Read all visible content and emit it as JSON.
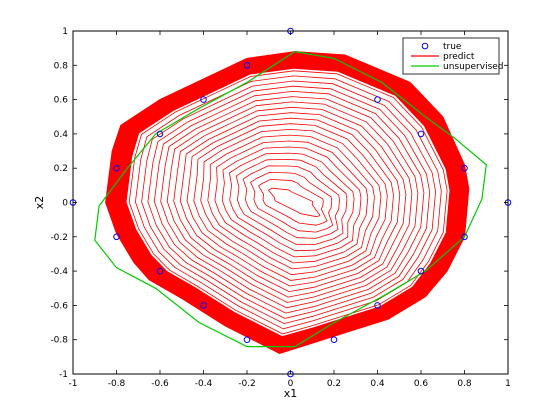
{
  "chart_data": {
    "type": "line",
    "title": "",
    "xlabel": "x1",
    "ylabel": "x2",
    "xlim": [
      -1,
      1
    ],
    "ylim": [
      -1,
      1
    ],
    "x_ticks": [
      -1,
      -0.8,
      -0.6,
      -0.4,
      -0.2,
      0,
      0.2,
      0.4,
      0.6,
      0.8,
      1
    ],
    "y_ticks": [
      -1,
      -0.8,
      -0.6,
      -0.4,
      -0.2,
      0,
      0.2,
      0.4,
      0.6,
      0.8,
      1
    ],
    "x_tick_labels": [
      "-1",
      "-0.8",
      "-0.6",
      "-0.4",
      "-0.2",
      "0",
      "0.2",
      "0.4",
      "0.6",
      "0.8",
      "1"
    ],
    "y_tick_labels": [
      "-1",
      "-0.8",
      "-0.6",
      "-0.4",
      "-0.2",
      "0",
      "0.2",
      "0.4",
      "0.6",
      "0.8",
      "1"
    ],
    "grid": false,
    "legend_position": "top-right",
    "colors": {
      "true": "#0000ff",
      "predict": "#ff0000",
      "unsupervised": "#00cc00"
    },
    "series": [
      {
        "name": "true",
        "style": "circle-markers",
        "x": [
          0,
          0.4,
          0.6,
          0.8,
          1,
          0.8,
          0.6,
          0.4,
          0.2,
          0,
          -0.2,
          -0.4,
          -0.6,
          -0.8,
          -1,
          -0.8,
          -0.6,
          -0.4,
          -0.2
        ],
        "y": [
          1,
          0.6,
          0.4,
          0.2,
          0,
          -0.2,
          -0.4,
          -0.6,
          -0.8,
          -1,
          0.8,
          0.6,
          0.4,
          -0.2,
          0,
          0.2,
          -0.4,
          -0.6,
          -0.8
        ]
      },
      {
        "name": "predict",
        "style": "nested-contours",
        "outer_x": [
          0.02,
          0.25,
          0.55,
          0.7,
          0.8,
          0.82,
          0.8,
          0.72,
          0.62,
          0.45,
          0.25,
          0.1,
          -0.05,
          -0.3,
          -0.5,
          -0.65,
          -0.72,
          -0.8,
          -0.85,
          -0.82,
          -0.78,
          -0.6,
          -0.4,
          -0.2
        ],
        "outer_y": [
          0.88,
          0.86,
          0.7,
          0.5,
          0.22,
          0.08,
          -0.2,
          -0.4,
          -0.55,
          -0.68,
          -0.76,
          -0.82,
          -0.88,
          -0.72,
          -0.56,
          -0.45,
          -0.35,
          -0.18,
          0,
          0.3,
          0.45,
          0.6,
          0.72,
          0.84
        ],
        "inner_x": [
          -0.02,
          0.08,
          0.12,
          0.05,
          -0.05,
          -0.08
        ],
        "inner_y": [
          0.05,
          0.0,
          -0.06,
          -0.04,
          0.02,
          0.06
        ],
        "levels": 22
      },
      {
        "name": "unsupervised",
        "style": "line",
        "x": [
          0.02,
          0.2,
          0.42,
          0.62,
          0.75,
          0.9,
          0.88,
          0.8,
          0.62,
          0.42,
          0.2,
          0.02,
          -0.2,
          -0.42,
          -0.62,
          -0.8,
          -0.9,
          -0.88,
          -0.75,
          -0.62,
          -0.42,
          -0.2,
          0.02
        ],
        "y": [
          0.88,
          0.84,
          0.7,
          0.5,
          0.38,
          0.22,
          0.02,
          -0.2,
          -0.4,
          -0.55,
          -0.7,
          -0.84,
          -0.84,
          -0.7,
          -0.5,
          -0.38,
          -0.22,
          -0.02,
          0.2,
          0.4,
          0.55,
          0.7,
          0.88
        ]
      }
    ]
  }
}
